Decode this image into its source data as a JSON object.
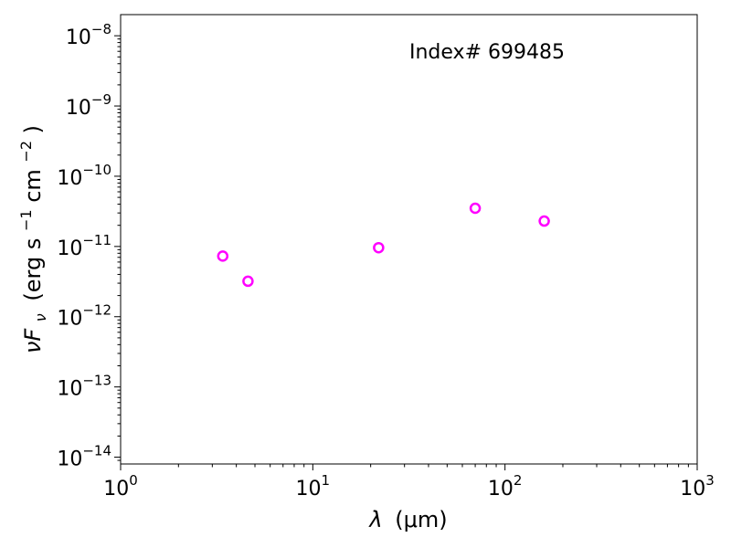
{
  "chart_data": {
    "type": "scatter",
    "title": "",
    "annotation": "Index# 699485",
    "xlabel_symbol": "λ",
    "xlabel_unit": "(μm)",
    "ylabel_main": "νF",
    "ylabel_sub": "ν",
    "ylabel_unit_prefix": "(erg s",
    "ylabel_unit_exp1": "−1",
    "ylabel_unit_mid": " cm",
    "ylabel_unit_exp2": "−2",
    "ylabel_unit_suffix": ")",
    "x_scale": "log",
    "y_scale": "log",
    "xlim": [
      1,
      1000
    ],
    "ylim": [
      8e-15,
      2e-08
    ],
    "x_ticks": [
      {
        "value": 1,
        "base": "10",
        "exp": "0"
      },
      {
        "value": 10,
        "base": "10",
        "exp": "1"
      },
      {
        "value": 100,
        "base": "10",
        "exp": "2"
      },
      {
        "value": 1000,
        "base": "10",
        "exp": "3"
      }
    ],
    "y_ticks": [
      {
        "value": 1e-14,
        "base": "10",
        "exp": "−14"
      },
      {
        "value": 1e-13,
        "base": "10",
        "exp": "−13"
      },
      {
        "value": 1e-12,
        "base": "10",
        "exp": "−12"
      },
      {
        "value": 1e-11,
        "base": "10",
        "exp": "−11"
      },
      {
        "value": 1e-10,
        "base": "10",
        "exp": "−10"
      },
      {
        "value": 1e-09,
        "base": "10",
        "exp": "−9"
      },
      {
        "value": 1e-08,
        "base": "10",
        "exp": "−8"
      }
    ],
    "grid": false,
    "marker_color": "#ff00ff",
    "series": [
      {
        "points": [
          {
            "x": 3.4,
            "y": 7.3e-12
          },
          {
            "x": 4.6,
            "y": 3.2e-12
          },
          {
            "x": 22,
            "y": 9.6e-12
          },
          {
            "x": 70,
            "y": 3.5e-11
          },
          {
            "x": 160,
            "y": 2.3e-11
          }
        ]
      }
    ]
  }
}
